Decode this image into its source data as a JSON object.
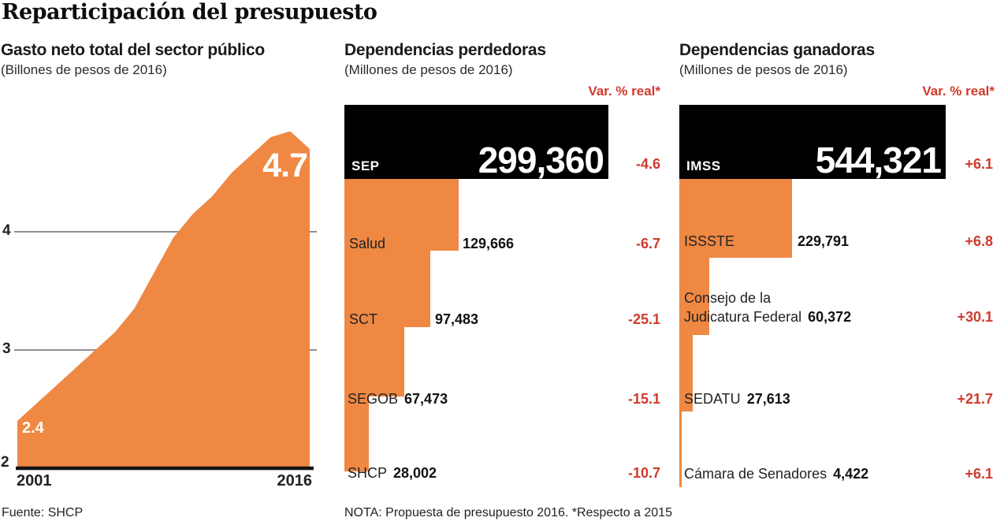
{
  "title": "Reparticipación del presupuesto",
  "colors": {
    "orange": "#EF8843",
    "red": "#CF3A2C",
    "bar_black": "#000000",
    "grid_gray": "#6A6A6A"
  },
  "left_chart": {
    "title": "Gasto neto total del sector público",
    "subtitle": "(Billones de pesos de 2016)",
    "y_ticks": [
      "4",
      "3",
      "2"
    ],
    "x_first": "2001",
    "x_last": "2016",
    "first_value_label": "2.4",
    "last_value_label": "4.7",
    "source": "Fuente: SHCP"
  },
  "perdedoras": {
    "title": "Dependencias perdedoras",
    "subtitle": "(Millones de pesos de 2016)",
    "var_header": "Var. % real*",
    "rows": [
      {
        "label": "SEP",
        "value": "299,360",
        "var": "-4.6"
      },
      {
        "label": "Salud",
        "value": "129,666",
        "var": "-6.7"
      },
      {
        "label": "SCT",
        "value": "97,483",
        "var": "-25.1"
      },
      {
        "label": "SEGOB",
        "value": "67,473",
        "var": "-15.1"
      },
      {
        "label": "SHCP",
        "value": "28,002",
        "var": "-10.7"
      }
    ],
    "note": "NOTA: Propuesta de presupuesto 2016. *Respecto a 2015"
  },
  "ganadoras": {
    "title": "Dependencias ganadoras",
    "subtitle": "(Millones de pesos de 2016)",
    "var_header": "Var. % real*",
    "rows": [
      {
        "label": "IMSS",
        "value": "544,321",
        "var": "+6.1"
      },
      {
        "label": "ISSSTE",
        "value": "229,791",
        "var": "+6.8"
      },
      {
        "label_line1": "Consejo de la",
        "label_line2": "Judicatura Federal",
        "value": "60,372",
        "var": "+30.1"
      },
      {
        "label": "SEDATU",
        "value": "27,613",
        "var": "+21.7"
      },
      {
        "label": "Cámara de Senadores",
        "value": "4,422",
        "var": "+6.1"
      }
    ]
  },
  "chart_data": [
    {
      "type": "area",
      "title": "Gasto neto total del sector público",
      "ylabel": "Billones de pesos de 2016",
      "x": [
        2001,
        2002,
        2003,
        2004,
        2005,
        2006,
        2007,
        2008,
        2009,
        2010,
        2011,
        2012,
        2013,
        2014,
        2015,
        2016
      ],
      "values": [
        2.4,
        2.55,
        2.7,
        2.85,
        3.0,
        3.15,
        3.35,
        3.65,
        3.95,
        4.15,
        4.3,
        4.5,
        4.65,
        4.8,
        4.85,
        4.7
      ],
      "ylim": [
        2,
        5
      ],
      "y_ticks": [
        2,
        3,
        4
      ],
      "annotations": {
        "first": "2.4",
        "last": "4.7"
      },
      "grid": "horizontal-partial",
      "legend": "none"
    },
    {
      "type": "bar",
      "title": "Dependencias perdedoras",
      "unit": "Millones de pesos de 2016",
      "categories": [
        "SEP",
        "Salud",
        "SCT",
        "SEGOB",
        "SHCP"
      ],
      "values": [
        299360,
        129666,
        97483,
        67473,
        28002
      ],
      "var_pct_real": [
        -4.6,
        -6.7,
        -25.1,
        -15.1,
        -10.7
      ]
    },
    {
      "type": "bar",
      "title": "Dependencias ganadoras",
      "unit": "Millones de pesos de 2016",
      "categories": [
        "IMSS",
        "ISSSTE",
        "Consejo de la Judicatura Federal",
        "SEDATU",
        "Cámara de Senadores"
      ],
      "values": [
        544321,
        229791,
        60372,
        27613,
        4422
      ],
      "var_pct_real": [
        6.1,
        6.8,
        30.1,
        21.7,
        6.1
      ]
    }
  ]
}
